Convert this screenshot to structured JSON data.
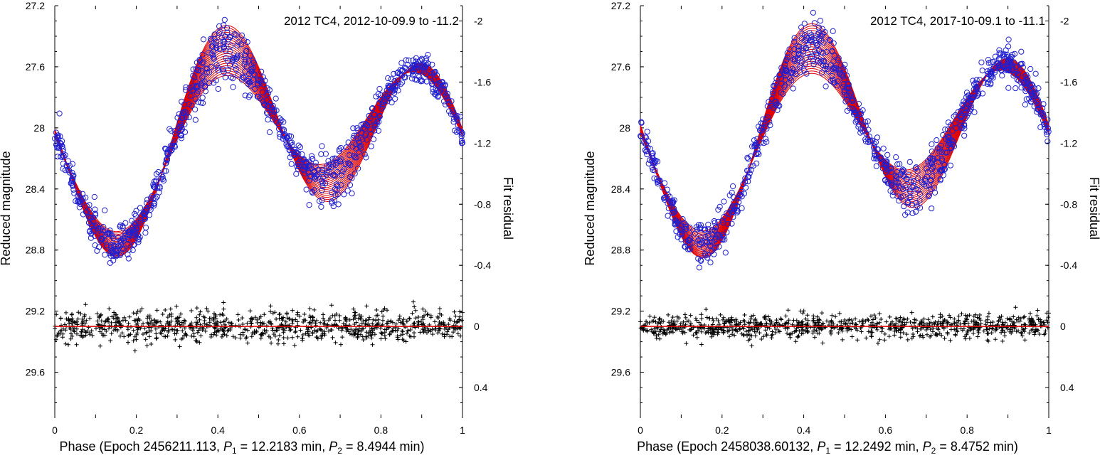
{
  "chart_data": [
    {
      "type": "scatter",
      "title": "2012 TC4, 2012-10-09.9 to -11.2",
      "xlabel_parts": [
        "Phase (Epoch 2456211.113, ",
        "P",
        "1",
        " = 12.2183 min, ",
        "P",
        "2",
        " = 8.4944 min)"
      ],
      "ylabel": "Reduced magnitude",
      "y2label": "Fit residual",
      "xlim": [
        0,
        1
      ],
      "ylim": [
        29.9,
        27.2
      ],
      "y2lim": [
        0.6,
        -2.1
      ],
      "xticks": [
        "0",
        "0.2",
        "0.4",
        "0.6",
        "0.8",
        "1"
      ],
      "yticks": [
        "27.2",
        "27.6",
        "28",
        "28.4",
        "28.8",
        "29.2",
        "29.6"
      ],
      "y2ticks": [
        "-2",
        "-1.6",
        "-1.2",
        "-0.8",
        "-0.4",
        "0",
        "0.4"
      ],
      "lightcurve": {
        "mean": 28.06,
        "amp1": 0.5,
        "phi1": 1.95,
        "amp2": 0.22,
        "phi2": 0.7,
        "min_phase": 0.17,
        "min_mag": 28.7
      },
      "residual_spread": 0.1,
      "series": [
        {
          "role": "observations",
          "marker": "circle",
          "color": "#1f1fd0"
        },
        {
          "role": "model fits",
          "marker": "line",
          "color": "#e00000"
        },
        {
          "role": "residuals",
          "marker": "plus",
          "color": "#000000"
        }
      ]
    },
    {
      "type": "scatter",
      "title": "2012 TC4, 2017-10-09.1 to -11.1",
      "xlabel_parts": [
        "Phase (Epoch 2458038.60132, ",
        "P",
        "1",
        " = 12.2492 min, ",
        "P",
        "2",
        " = 8.4752 min)"
      ],
      "ylabel": "Reduced magnitude",
      "y2label": "Fit residual",
      "xlim": [
        0,
        1
      ],
      "ylim": [
        29.9,
        27.2
      ],
      "y2lim": [
        0.6,
        -2.1
      ],
      "xticks": [
        "0",
        "0.2",
        "0.4",
        "0.6",
        "0.8",
        "1"
      ],
      "yticks": [
        "27.2",
        "27.6",
        "28",
        "28.4",
        "28.8",
        "29.2",
        "29.6"
      ],
      "y2ticks": [
        "-2",
        "-1.6",
        "-1.2",
        "-0.8",
        "-0.4",
        "0",
        "0.4"
      ],
      "lightcurve": {
        "mean": 28.06,
        "amp1": 0.52,
        "phi1": 1.95,
        "amp2": 0.2,
        "phi2": 0.7,
        "min_phase": 0.17,
        "min_mag": 28.7
      },
      "residual_spread": 0.08,
      "series": [
        {
          "role": "observations",
          "marker": "circle",
          "color": "#1f1fd0"
        },
        {
          "role": "model fits",
          "marker": "line",
          "color": "#e00000"
        },
        {
          "role": "residuals",
          "marker": "plus",
          "color": "#000000"
        }
      ]
    }
  ]
}
